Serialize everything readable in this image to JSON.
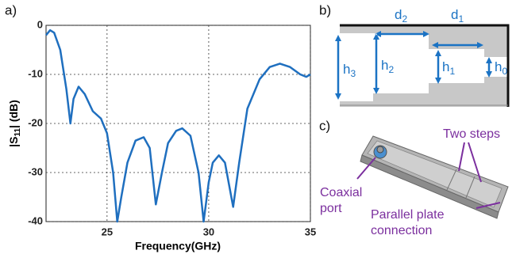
{
  "chart_data": {
    "type": "line",
    "color": "#1f6fbf",
    "x_label": "Frequency(GHz)",
    "y_label": {
      "pre": "|S",
      "sub": "11",
      "post": "| (dB)"
    },
    "x": [
      22,
      22.2,
      22.4,
      22.7,
      23.0,
      23.2,
      23.35,
      23.6,
      23.9,
      24.3,
      24.7,
      25.0,
      25.3,
      25.5,
      25.7,
      26.0,
      26.4,
      26.8,
      27.1,
      27.4,
      27.7,
      28.0,
      28.4,
      28.7,
      29.1,
      29.5,
      29.75,
      30.0,
      30.2,
      30.5,
      30.8,
      31.2,
      31.5,
      31.9,
      32.5,
      33.0,
      33.5,
      34.0,
      34.5,
      34.8,
      35
    ],
    "values": [
      -2,
      -1,
      -1.5,
      -5,
      -13,
      -20,
      -15,
      -12.5,
      -14,
      -17.5,
      -19,
      -22,
      -30,
      -40,
      -35,
      -28,
      -23.5,
      -22.8,
      -25,
      -36.5,
      -30,
      -24,
      -21.5,
      -21,
      -22.5,
      -30,
      -40,
      -32,
      -28,
      -26.5,
      -28,
      -37,
      -28,
      -17,
      -11,
      -8.5,
      -7.8,
      -8.5,
      -10,
      -10.5,
      -10
    ],
    "xlim": [
      22,
      35
    ],
    "ylim": [
      -40,
      0
    ],
    "xticks": [
      25,
      30,
      35
    ],
    "yticks": [
      -40,
      -30,
      -20,
      -10,
      0
    ],
    "grid": true
  },
  "panels": {
    "a": "a)",
    "b": "b)",
    "c": "c)",
    "dims": [
      {
        "base": "d",
        "sub": "2"
      },
      {
        "base": "d",
        "sub": "1"
      },
      {
        "base": "h",
        "sub": "3"
      },
      {
        "base": "h",
        "sub": "2"
      },
      {
        "base": "h",
        "sub": "1"
      },
      {
        "base": "h",
        "sub": "0"
      }
    ],
    "callouts": {
      "two_steps": "Two steps",
      "coax": [
        "Coaxial",
        "port"
      ],
      "parallel": [
        "Parallel plate",
        "connection"
      ]
    }
  }
}
